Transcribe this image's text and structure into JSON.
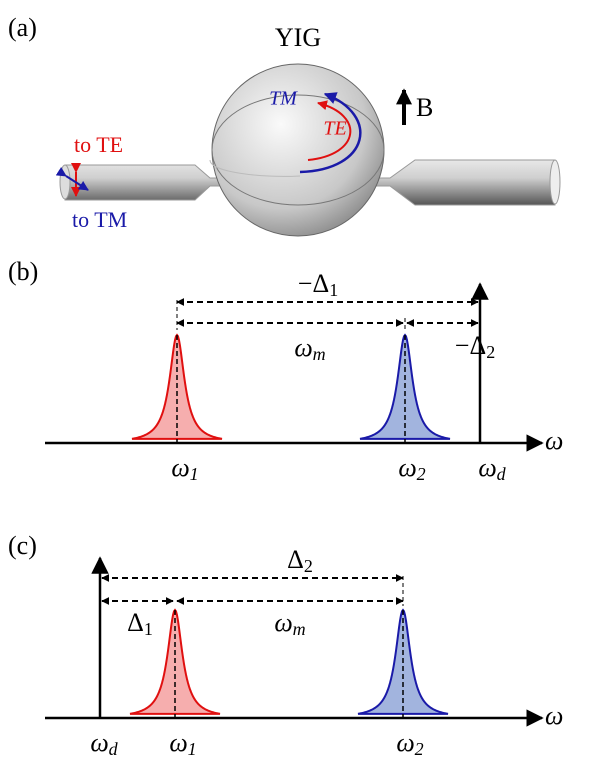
{
  "panel_a": {
    "label": "(a)",
    "sphere": "YIG",
    "mode_tm": "TM",
    "mode_te": "TE",
    "field": "B",
    "to_te": "to TE",
    "to_tm": "to TM"
  },
  "panel_b": {
    "label": "(b)",
    "axis": "ω",
    "top_span": {
      "main": "−Δ",
      "sub": "1"
    },
    "mid_span": {
      "main": "ω",
      "sub": "m"
    },
    "right_span": {
      "main": "−Δ",
      "sub": "2"
    },
    "tick_1": {
      "main": "ω",
      "sub": "1"
    },
    "tick_2": {
      "main": "ω",
      "sub": "2"
    },
    "tick_d": {
      "main": "ω",
      "sub": "d"
    }
  },
  "panel_c": {
    "label": "(c)",
    "axis": "ω",
    "top_span": {
      "main": "Δ",
      "sub": "2"
    },
    "left_span": {
      "main": "Δ",
      "sub": "1"
    },
    "mid_span": {
      "main": "ω",
      "sub": "m"
    },
    "tick_d": {
      "main": "ω",
      "sub": "d"
    },
    "tick_1": {
      "main": "ω",
      "sub": "1"
    },
    "tick_2": {
      "main": "ω",
      "sub": "2"
    }
  }
}
